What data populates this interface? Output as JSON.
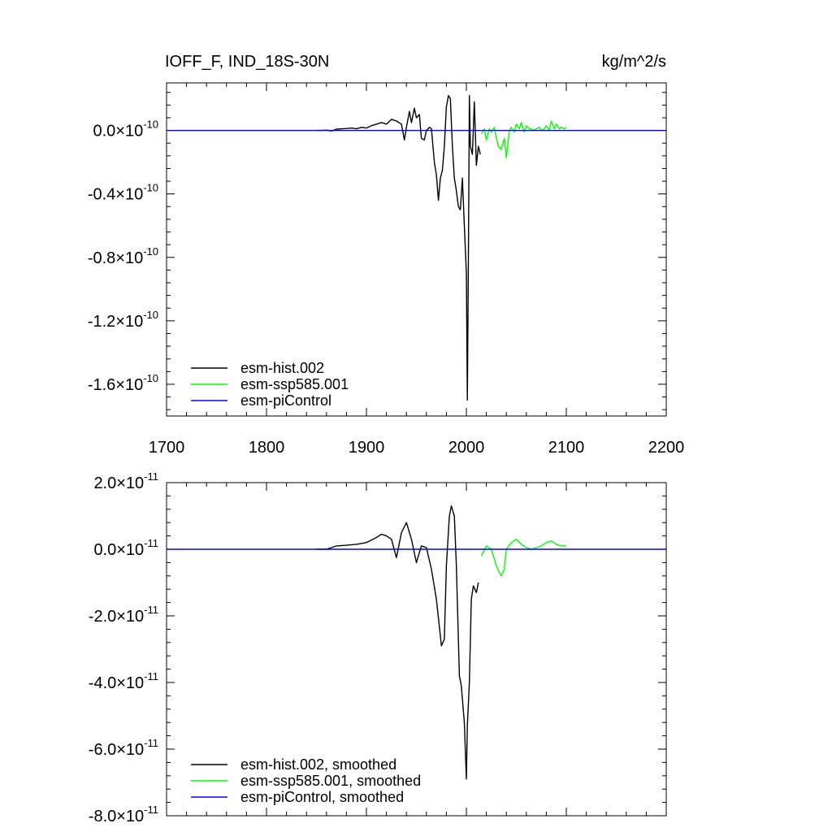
{
  "chart_data": [
    {
      "type": "line",
      "title_left": "IOFF_F, IND_18S-30N",
      "title_right": "kg/m^2/s",
      "xlim": [
        1700,
        2200
      ],
      "ylim": [
        -1.8e-10,
        3e-11
      ],
      "x_ticks": [
        1700,
        1800,
        1900,
        2000,
        2100,
        2200
      ],
      "x_tick_labels": [
        "1700",
        "1800",
        "1900",
        "2000",
        "2100",
        "2200"
      ],
      "y_ticks": [
        0.0,
        -4e-11,
        -8e-11,
        -1.2e-10,
        -1.6e-10
      ],
      "y_tick_mantissa": [
        "0.0",
        "-0.4",
        "-0.8",
        "-1.2",
        "-1.6"
      ],
      "y_tick_multiplier": "×10",
      "y_tick_exponent": "-10",
      "legend_position": "bottom-left",
      "series": [
        {
          "name": "esm-hist.002",
          "color": "#000000",
          "x": [
            1850,
            1855,
            1860,
            1865,
            1870,
            1875,
            1880,
            1885,
            1890,
            1895,
            1900,
            1905,
            1910,
            1915,
            1920,
            1925,
            1930,
            1935,
            1938,
            1940,
            1943,
            1945,
            1948,
            1950,
            1953,
            1955,
            1958,
            1960,
            1963,
            1965,
            1968,
            1970,
            1972,
            1974,
            1976,
            1978,
            1980,
            1982,
            1984,
            1986,
            1988,
            1990,
            1992,
            1994,
            1996,
            1998,
            2000,
            2001,
            2002,
            2003,
            2004,
            2006,
            2008,
            2010,
            2012,
            2014
          ],
          "y": [
            0.0,
            0.0,
            2e-13,
            -3e-13,
            8e-13,
            1e-12,
            1.2e-12,
            1.5e-12,
            1e-12,
            2e-12,
            1.5e-12,
            3e-12,
            4e-12,
            5e-12,
            4e-12,
            7e-12,
            6e-12,
            4e-12,
            -6e-12,
            2e-12,
            1.2e-11,
            5e-12,
            1.4e-11,
            8e-12,
            1e-11,
            -5e-12,
            -6e-12,
            0.0,
            2e-12,
            1e-12,
            -2e-11,
            -2.8e-11,
            -4.4e-11,
            -3e-11,
            -2.5e-11,
            -1e-11,
            1.5e-11,
            2.2e-11,
            2e-11,
            -1e-11,
            -3e-11,
            -3.8e-11,
            -4.8e-11,
            -5e-11,
            -3e-11,
            -6e-11,
            -9e-11,
            -1.7e-10,
            -8e-11,
            2.2e-11,
            -1e-11,
            -1.5e-11,
            1.8e-11,
            -2.2e-11,
            -1e-11,
            -1.5e-11
          ]
        },
        {
          "name": "esm-ssp585.001",
          "color": "#00ff00",
          "x": [
            2015,
            2018,
            2020,
            2023,
            2025,
            2028,
            2030,
            2032,
            2035,
            2038,
            2040,
            2043,
            2045,
            2048,
            2050,
            2053,
            2055,
            2058,
            2060,
            2063,
            2065,
            2068,
            2070,
            2073,
            2075,
            2078,
            2080,
            2083,
            2085,
            2088,
            2090,
            2093,
            2095,
            2098,
            2100
          ],
          "y": [
            -2e-12,
            1e-12,
            -6e-12,
            1e-12,
            -1e-12,
            2e-12,
            -5e-12,
            -1e-11,
            -1.2e-11,
            -5e-12,
            -1.7e-11,
            0.0,
            2e-12,
            -1e-12,
            4e-12,
            1e-12,
            5e-12,
            -1e-12,
            3e-12,
            1e-12,
            1e-12,
            0.0,
            1e-12,
            2e-12,
            0.0,
            1e-12,
            3e-12,
            0.0,
            6e-12,
            1e-12,
            4e-12,
            1e-12,
            2e-12,
            1e-12,
            2e-12
          ]
        },
        {
          "name": "esm-piControl",
          "color": "#0000ff",
          "x": [
            1700,
            2200
          ],
          "y": [
            0.0,
            0.0
          ]
        }
      ]
    },
    {
      "type": "line",
      "xlim": [
        1700,
        2200
      ],
      "ylim": [
        -8e-11,
        2e-11
      ],
      "y_ticks": [
        2e-11,
        0.0,
        -2e-11,
        -4e-11,
        -6e-11,
        -8e-11
      ],
      "y_tick_mantissa": [
        "2.0",
        "0.0",
        "-2.0",
        "-4.0",
        "-6.0",
        "-8.0"
      ],
      "y_tick_multiplier": "×10",
      "y_tick_exponent": "-11",
      "legend_position": "bottom-left",
      "series": [
        {
          "name": "esm-hist.002, smoothed",
          "color": "#000000",
          "x": [
            1850,
            1860,
            1865,
            1870,
            1880,
            1890,
            1900,
            1910,
            1915,
            1920,
            1925,
            1930,
            1935,
            1940,
            1945,
            1950,
            1955,
            1960,
            1965,
            1970,
            1975,
            1978,
            1980,
            1983,
            1985,
            1988,
            1990,
            1993,
            1995,
            1998,
            2000,
            2001,
            2003,
            2005,
            2007,
            2010,
            2012
          ],
          "y": [
            0.0,
            0.0,
            5e-13,
            1e-12,
            1.2e-12,
            1.5e-12,
            2e-12,
            3.5e-12,
            4.5e-12,
            4e-12,
            3e-12,
            -2.5e-12,
            5e-12,
            8e-12,
            3e-12,
            -4e-12,
            1e-12,
            5e-13,
            -6e-12,
            -1.5e-11,
            -2.9e-11,
            -2.7e-11,
            -5e-12,
            1e-11,
            1.3e-11,
            1e-11,
            -5e-12,
            -3.8e-11,
            -4.1e-11,
            -5.2e-11,
            -6.9e-11,
            -5.3e-11,
            -4e-11,
            -1.5e-11,
            -1.1e-11,
            -1.3e-11,
            -1e-11
          ]
        },
        {
          "name": "esm-ssp585.001, smoothed",
          "color": "#00ff00",
          "x": [
            2015,
            2020,
            2025,
            2030,
            2033,
            2035,
            2038,
            2040,
            2045,
            2050,
            2055,
            2060,
            2065,
            2070,
            2075,
            2080,
            2085,
            2090,
            2095,
            2100
          ],
          "y": [
            -2e-12,
            1e-12,
            0.0,
            -5e-12,
            -7e-12,
            -8e-12,
            -6e-12,
            0.0,
            2e-12,
            3e-12,
            1.5e-12,
            5e-13,
            0.0,
            5e-13,
            1e-12,
            2e-12,
            2.5e-12,
            1.5e-12,
            1e-12,
            1e-12
          ]
        },
        {
          "name": "esm-piControl, smoothed",
          "color": "#0000ff",
          "x": [
            1700,
            2200
          ],
          "y": [
            0.0,
            0.0
          ]
        }
      ]
    }
  ]
}
